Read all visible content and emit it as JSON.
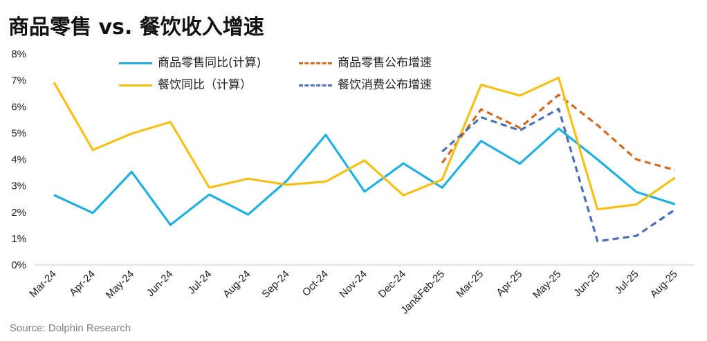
{
  "title": "商品零售 vs. 餐饮收入增速",
  "source": "Source: Dolphin Research",
  "chart_data": {
    "type": "line",
    "title": "商品零售 vs. 餐饮收入增速",
    "xlabel": "",
    "ylabel": "",
    "ylim": [
      0,
      8
    ],
    "yticks": [
      "0%",
      "1%",
      "2%",
      "3%",
      "4%",
      "5%",
      "6%",
      "7%",
      "8%"
    ],
    "grid": false,
    "legend_placement": "top",
    "categories": [
      "Mar-24",
      "Apr-24",
      "May-24",
      "Jun-24",
      "Jul-24",
      "Aug-24",
      "Sep-24",
      "Oct-24",
      "Nov-24",
      "Dec-24",
      "Jan&Feb-25",
      "Mar-25",
      "Apr-25",
      "May-25",
      "Jun-25",
      "Jul-25",
      "Aug-25"
    ],
    "series": [
      {
        "name": "商品零售同比(计算)",
        "color": "#1fb0e0",
        "style": "solid",
        "values": [
          2.65,
          1.97,
          3.53,
          1.52,
          2.67,
          1.91,
          3.2,
          4.93,
          2.78,
          3.85,
          2.93,
          4.7,
          3.84,
          5.17,
          4.0,
          2.77,
          2.3
        ]
      },
      {
        "name": "商品零售公布增速",
        "color": "#d2691e",
        "style": "dashed",
        "values": [
          null,
          null,
          null,
          null,
          null,
          null,
          null,
          null,
          null,
          null,
          3.87,
          5.9,
          5.2,
          6.45,
          5.3,
          4.0,
          3.6
        ]
      },
      {
        "name": "餐饮同比（计算）",
        "color": "#f5c016",
        "style": "solid",
        "values": [
          6.92,
          4.36,
          4.98,
          5.42,
          2.93,
          3.27,
          3.04,
          3.16,
          3.96,
          2.64,
          3.24,
          6.83,
          6.42,
          7.1,
          2.11,
          2.29,
          3.31
        ]
      },
      {
        "name": "餐饮消费公布增速",
        "color": "#4a6fb5",
        "style": "dashed",
        "values": [
          null,
          null,
          null,
          null,
          null,
          null,
          null,
          null,
          null,
          null,
          4.3,
          5.6,
          5.1,
          5.92,
          0.9,
          1.1,
          2.1
        ]
      }
    ]
  }
}
